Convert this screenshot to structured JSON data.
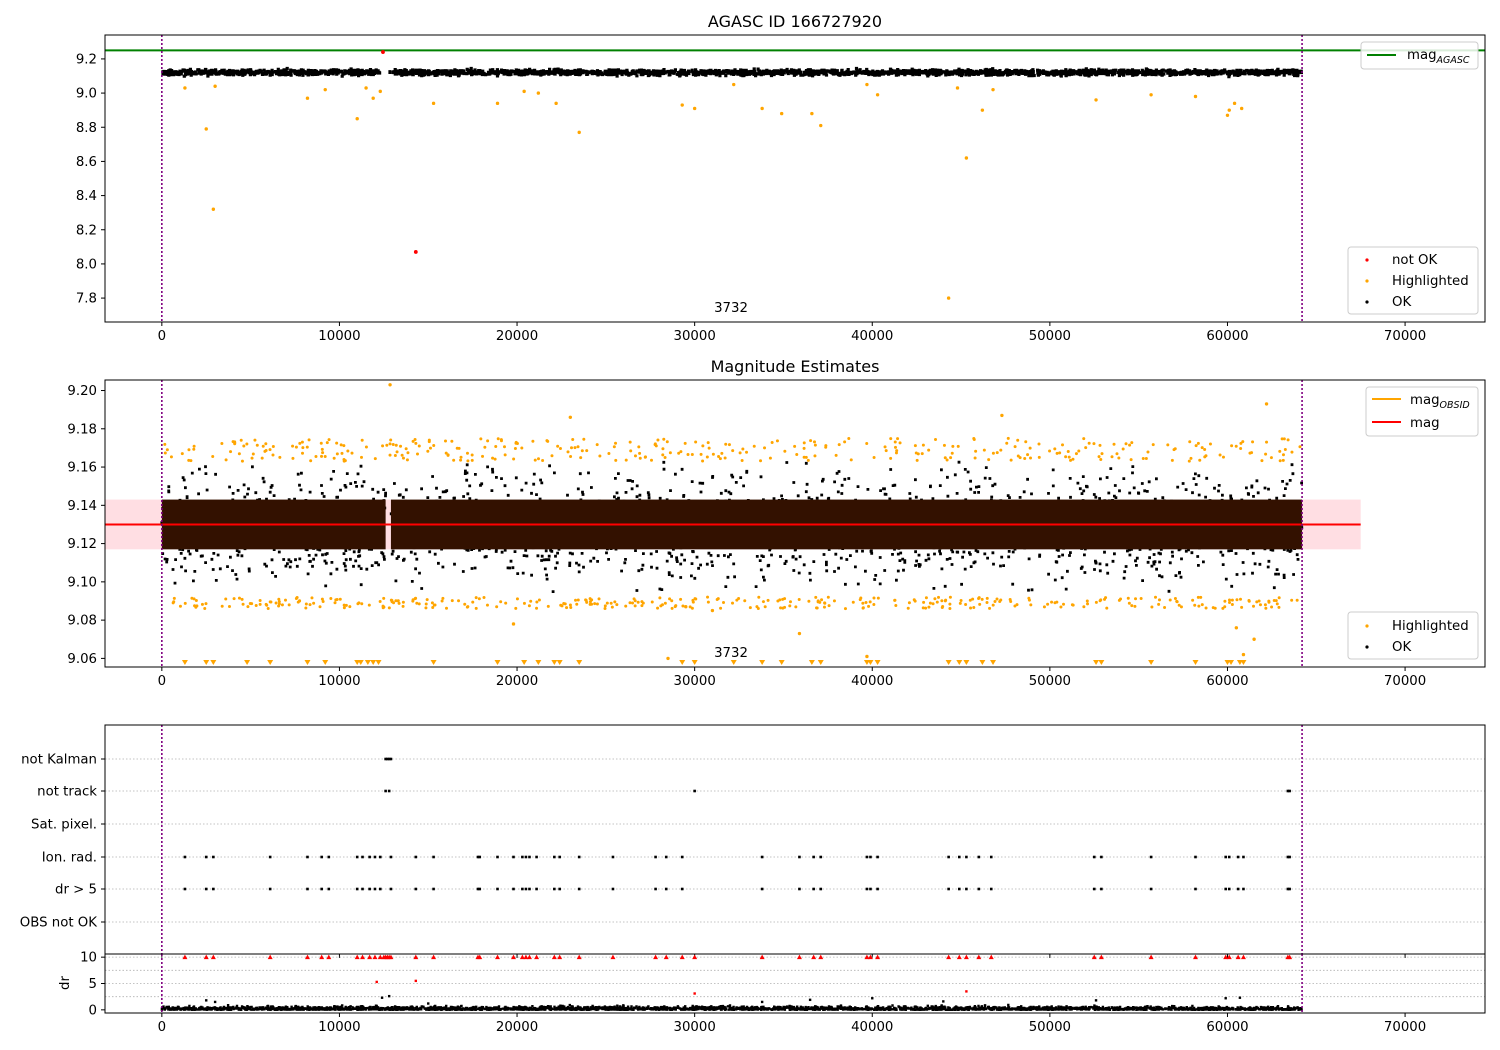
{
  "colors": {
    "ok": "#000000",
    "highlighted": "#ffa500",
    "not_ok": "#ff0000",
    "mag_agasc_line": "#008000",
    "mag_obsid_line": "#ffa500",
    "mag_line": "#ff0000",
    "mag_band": "#ffb6c1",
    "dense_band": "#331100",
    "boundary": "#800080",
    "grid": "#b0b0b0"
  },
  "legend_text": {
    "mag": "mag",
    "sub_agasc": "AGASC",
    "sub_obsid": "OBSID"
  },
  "chart_data": [
    {
      "type": "scatter",
      "title": "AGASC ID 166727920",
      "xlabel": "",
      "ylabel": "",
      "annotation": "3732",
      "xlim": [
        -3200,
        74500
      ],
      "ylim": [
        7.66,
        9.34
      ],
      "xticks": [
        0,
        10000,
        20000,
        30000,
        40000,
        50000,
        60000,
        70000
      ],
      "yticks": [
        7.8,
        8.0,
        8.2,
        8.4,
        8.6,
        8.8,
        9.0,
        9.2
      ],
      "obsid_boundaries": [
        0,
        64200
      ],
      "reference_lines": [
        {
          "name": "mag_AGASC",
          "y": 9.25,
          "x_range": [
            -3200,
            74500
          ]
        }
      ],
      "legend_top": {
        "position": "top-right",
        "entries": [
          "mag_AGASC"
        ]
      },
      "legend_bottom": {
        "position": "lower-right",
        "entries": [
          "not OK",
          "Highlighted",
          "OK"
        ]
      },
      "series": [
        {
          "name": "not OK",
          "points": [
            [
              12450,
              9.24
            ],
            [
              14300,
              8.07
            ]
          ]
        },
        {
          "name": "Highlighted",
          "points": [
            [
              1300,
              9.03
            ],
            [
              2500,
              8.79
            ],
            [
              2900,
              8.32
            ],
            [
              3000,
              9.04
            ],
            [
              8200,
              8.97
            ],
            [
              9200,
              9.02
            ],
            [
              11000,
              8.85
            ],
            [
              11500,
              9.03
            ],
            [
              11900,
              8.97
            ],
            [
              12300,
              9.01
            ],
            [
              15300,
              8.94
            ],
            [
              18900,
              8.94
            ],
            [
              20400,
              9.01
            ],
            [
              21200,
              9.0
            ],
            [
              22200,
              8.94
            ],
            [
              23500,
              8.77
            ],
            [
              29300,
              8.93
            ],
            [
              30000,
              8.91
            ],
            [
              32200,
              9.05
            ],
            [
              33800,
              8.91
            ],
            [
              34900,
              8.88
            ],
            [
              36600,
              8.88
            ],
            [
              37100,
              8.81
            ],
            [
              39700,
              9.05
            ],
            [
              40300,
              8.99
            ],
            [
              44300,
              7.8
            ],
            [
              44800,
              9.03
            ],
            [
              45300,
              8.62
            ],
            [
              46200,
              8.9
            ],
            [
              46800,
              9.02
            ],
            [
              52600,
              8.96
            ],
            [
              55700,
              8.99
            ],
            [
              58200,
              8.98
            ],
            [
              60000,
              8.87
            ],
            [
              60100,
              8.9
            ],
            [
              60400,
              8.94
            ],
            [
              60800,
              8.91
            ]
          ]
        },
        {
          "name": "OK",
          "summary": "approximately continuous band of points between 9.10 and 9.17 for x in [0, 12300] and [12800, 64200]"
        }
      ]
    },
    {
      "type": "scatter",
      "title": "Magnitude Estimates",
      "xlabel": "",
      "ylabel": "",
      "annotation": "3732",
      "xlim": [
        -3200,
        74500
      ],
      "ylim": [
        9.0555,
        9.2055
      ],
      "xticks": [
        0,
        10000,
        20000,
        30000,
        40000,
        50000,
        60000,
        70000
      ],
      "yticks": [
        9.06,
        9.08,
        9.1,
        9.12,
        9.14,
        9.16,
        9.18,
        9.2
      ],
      "obsid_boundaries": [
        0,
        64200
      ],
      "reference_lines": [
        {
          "name": "mag",
          "y": 9.13,
          "x_range": [
            -3200,
            67500
          ],
          "band": [
            9.117,
            9.143
          ]
        },
        {
          "name": "mag_OBSID",
          "y": 9.13,
          "x_range": [
            0,
            12400
          ]
        }
      ],
      "legend_top": {
        "position": "top-right",
        "entries": [
          "mag_OBSID",
          "mag"
        ]
      },
      "legend_bottom": {
        "position": "lower-right",
        "entries": [
          "Highlighted",
          "OK"
        ]
      },
      "series": [
        {
          "name": "Highlighted",
          "points": [
            [
              12850,
              9.203
            ],
            [
              47300,
              9.187
            ],
            [
              62200,
              9.193
            ],
            [
              23000,
              9.186
            ],
            [
              19800,
              9.078
            ],
            [
              28500,
              9.06
            ],
            [
              39700,
              9.061
            ],
            [
              60500,
              9.076
            ],
            [
              60900,
              9.062
            ],
            [
              61500,
              9.07
            ],
            [
              35900,
              9.073
            ],
            [
              31000,
              9.085
            ],
            [
              29500,
              9.087
            ]
          ]
        },
        {
          "name": "Highlighted (below axis)",
          "x": [
            1300,
            2500,
            2900,
            4800,
            6100,
            8200,
            9200,
            11000,
            11200,
            11600,
            11900,
            12200,
            15300,
            18900,
            20400,
            21200,
            22100,
            22400,
            23500,
            29300,
            30000,
            32200,
            33800,
            34900,
            36600,
            37100,
            39700,
            39900,
            40300,
            44300,
            44900,
            45300,
            46200,
            46800,
            52600,
            52900,
            55700,
            58200,
            60000,
            60200,
            60700,
            60900
          ]
        },
        {
          "name": "OK",
          "summary": "dense points between 9.09 and 9.165 for x in [0, 12600] and [12900, 64200]"
        }
      ]
    },
    {
      "type": "scatter",
      "title": "",
      "xlabel": "",
      "ylabel": "",
      "xlim": [
        -3200,
        74500
      ],
      "xticks": [
        0,
        10000,
        20000,
        30000,
        40000,
        50000,
        60000,
        70000
      ],
      "categories": [
        "not Kalman",
        "not track",
        "Sat. pixel.",
        "Ion. rad.",
        "dr > 5",
        "OBS not OK"
      ],
      "obsid_boundaries": [
        0,
        64200
      ],
      "flags": {
        "not Kalman": [
          12600,
          12700,
          12800,
          12900
        ],
        "not track": [
          12600,
          12800,
          30000,
          63400,
          63500
        ],
        "Sat. pixel.": [],
        "Ion. rad.": [
          1300,
          2500,
          2900,
          6100,
          8200,
          9000,
          9400,
          11000,
          11300,
          11700,
          12000,
          12300,
          12900,
          14300,
          15300,
          17800,
          17900,
          18900,
          19800,
          20300,
          20500,
          20700,
          21100,
          22100,
          22400,
          23500,
          25400,
          27800,
          28400,
          29300,
          33800,
          35900,
          36700,
          37100,
          39700,
          39900,
          40300,
          44300,
          44900,
          45300,
          46000,
          46700,
          52500,
          52900,
          55700,
          58200,
          59900,
          60100,
          60600,
          60900,
          63400,
          63500
        ],
        "dr > 5": [
          1300,
          2500,
          2900,
          6100,
          8200,
          9000,
          9400,
          11000,
          11300,
          11700,
          12000,
          12300,
          12900,
          14300,
          15300,
          17800,
          17900,
          18900,
          19800,
          20300,
          20500,
          20700,
          21100,
          22100,
          22400,
          23500,
          25400,
          27800,
          28400,
          29300,
          33800,
          35900,
          36700,
          37100,
          39700,
          39900,
          40300,
          44300,
          44900,
          45300,
          46000,
          46700,
          52500,
          52900,
          55700,
          58200,
          59900,
          60100,
          60600,
          60900,
          63400,
          63500
        ],
        "OBS not OK": []
      }
    },
    {
      "type": "scatter",
      "title": "",
      "xlabel": "",
      "ylabel": "dr",
      "xlim": [
        -3200,
        74500
      ],
      "ylim": [
        -0.6,
        10.6
      ],
      "yticks": [
        0,
        5,
        10
      ],
      "xticks": [
        0,
        10000,
        20000,
        30000,
        40000,
        50000,
        60000,
        70000
      ],
      "xticklabels": [
        "0",
        "10000",
        "20000",
        "30000",
        "40000",
        "50000",
        "60000",
        "70000"
      ],
      "obsid_boundaries": [
        0,
        64200
      ],
      "series": [
        {
          "name": "dr (clipped at 10)",
          "x": [
            1300,
            2500,
            2900,
            6100,
            8200,
            9000,
            9400,
            11000,
            11300,
            11700,
            12000,
            12300,
            12500,
            12600,
            12700,
            12800,
            12900,
            14300,
            15300,
            17800,
            17900,
            18900,
            19800,
            20300,
            20500,
            20700,
            21100,
            22100,
            22400,
            23500,
            25400,
            27800,
            28400,
            29300,
            30000,
            33800,
            35900,
            36700,
            37100,
            39700,
            39900,
            40300,
            44300,
            44900,
            45300,
            46000,
            46700,
            52500,
            52900,
            55700,
            58200,
            59900,
            60100,
            60600,
            60900,
            63400,
            63500
          ],
          "y": 10
        },
        {
          "name": "dr (red)",
          "points": [
            [
              12100,
              5.3
            ],
            [
              14300,
              5.5
            ],
            [
              30000,
              3.1
            ],
            [
              45300,
              3.5
            ]
          ]
        },
        {
          "name": "dr (black)",
          "points": [
            [
              2500,
              1.8
            ],
            [
              3000,
              1.5
            ],
            [
              12400,
              2.3
            ],
            [
              12800,
              2.6
            ],
            [
              15000,
              1.2
            ],
            [
              33800,
              1.5
            ],
            [
              36500,
              1.9
            ],
            [
              40000,
              2.2
            ],
            [
              44000,
              1.6
            ],
            [
              52600,
              1.8
            ],
            [
              59900,
              2.2
            ],
            [
              60700,
              2.3
            ]
          ],
          "summary": "dense points between 0 and 1 for x in [0, 64200]"
        }
      ]
    }
  ]
}
